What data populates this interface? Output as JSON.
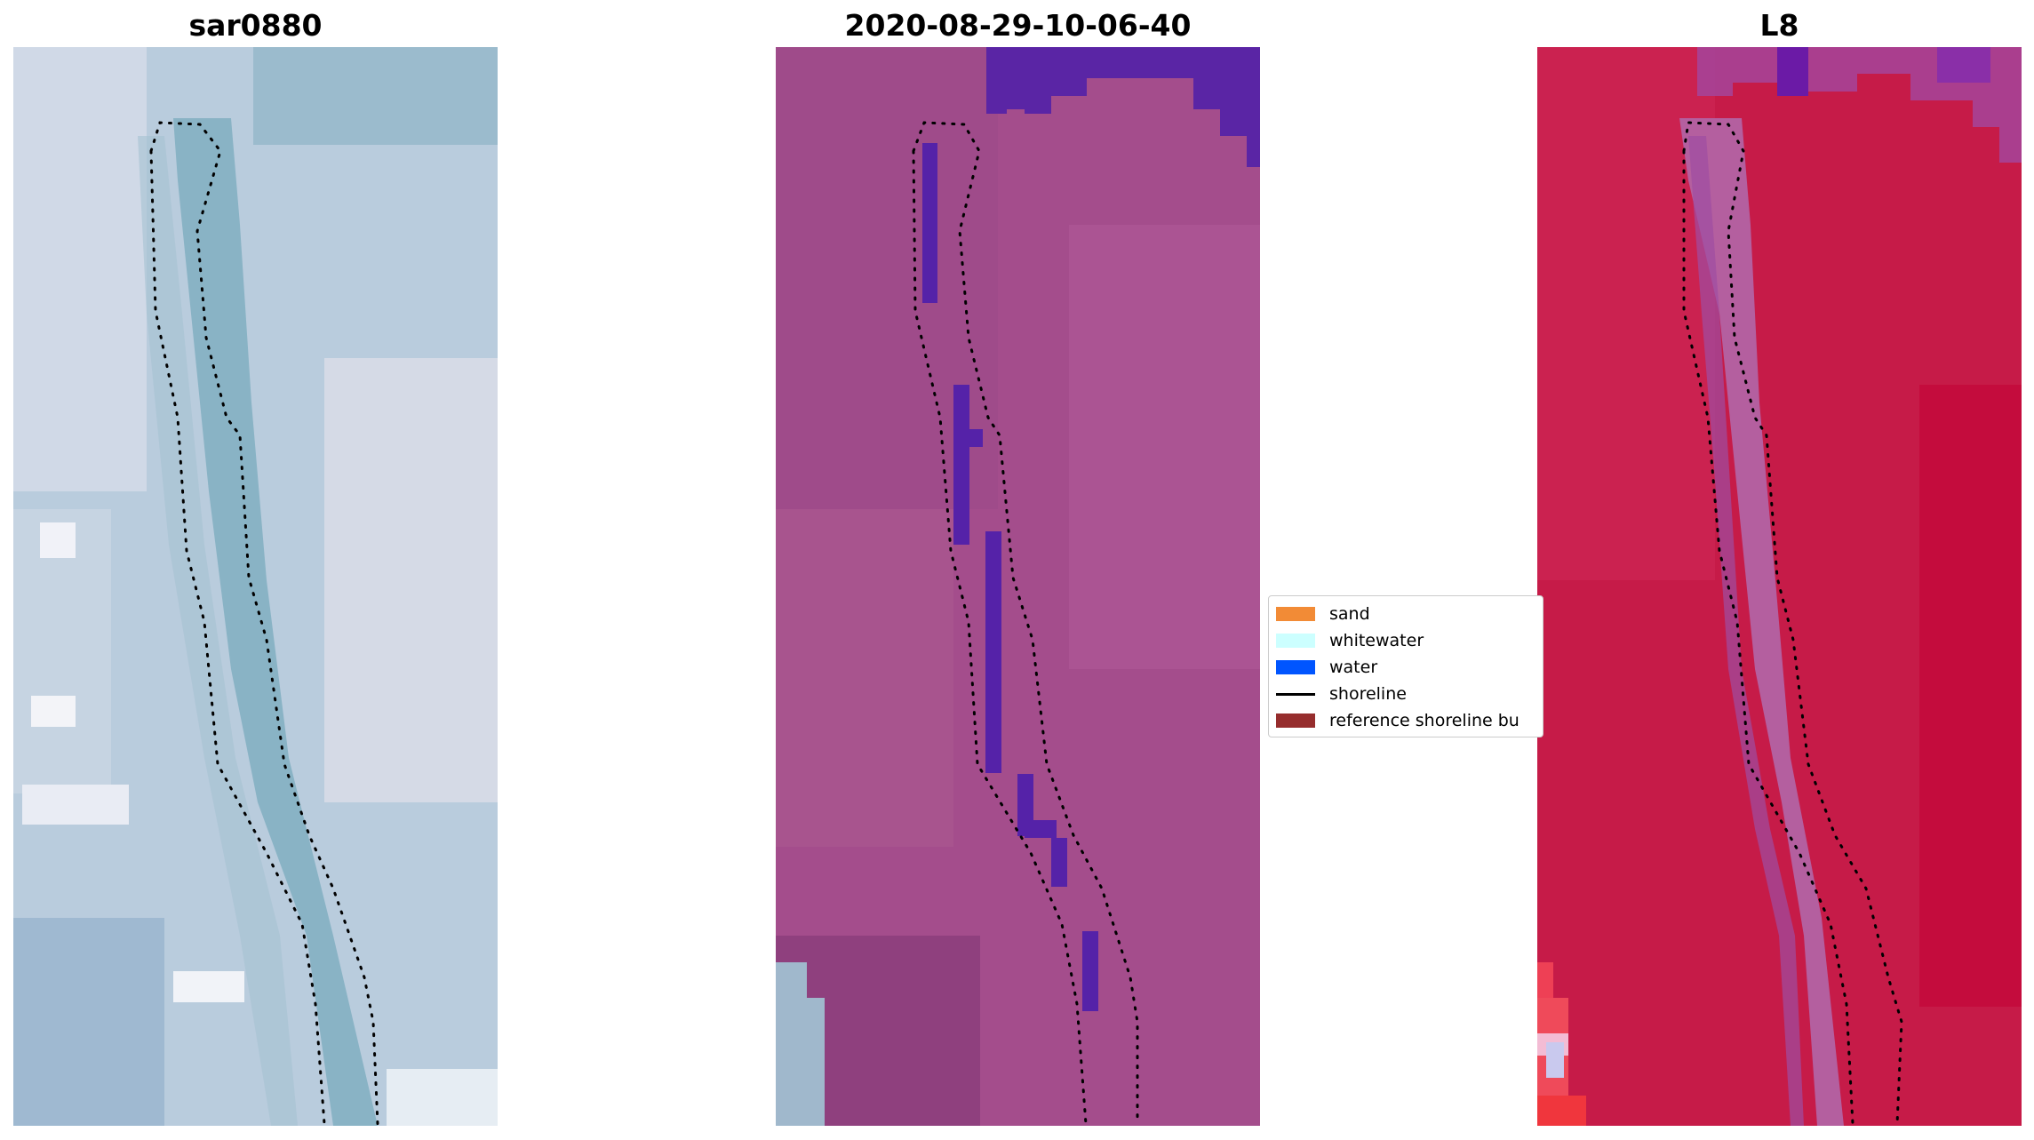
{
  "panels": [
    {
      "id": "sar",
      "title": "sar0880"
    },
    {
      "id": "date",
      "title": "2020-08-29-10-06-40"
    },
    {
      "id": "l8",
      "title": "L8"
    }
  ],
  "legend": {
    "items": [
      {
        "label": "sand",
        "color": "#f28b36",
        "kind": "patch"
      },
      {
        "label": "whitewater",
        "color": "#ccffff",
        "kind": "patch"
      },
      {
        "label": "water",
        "color": "#0055ff",
        "kind": "patch"
      },
      {
        "label": "shoreline",
        "color": "#000000",
        "kind": "line"
      },
      {
        "label": "reference shoreline bu",
        "color": "#962d2d",
        "kind": "patch"
      }
    ]
  },
  "colors": {
    "sar_base": "#b7cbdc",
    "sar_channel": "#8db4c6",
    "sar_land_light": "#d9dcea",
    "date_base": "#a14d8c",
    "date_water": "#5923a6",
    "l8_base": "#c51c48",
    "l8_channel": "#b664a4"
  }
}
